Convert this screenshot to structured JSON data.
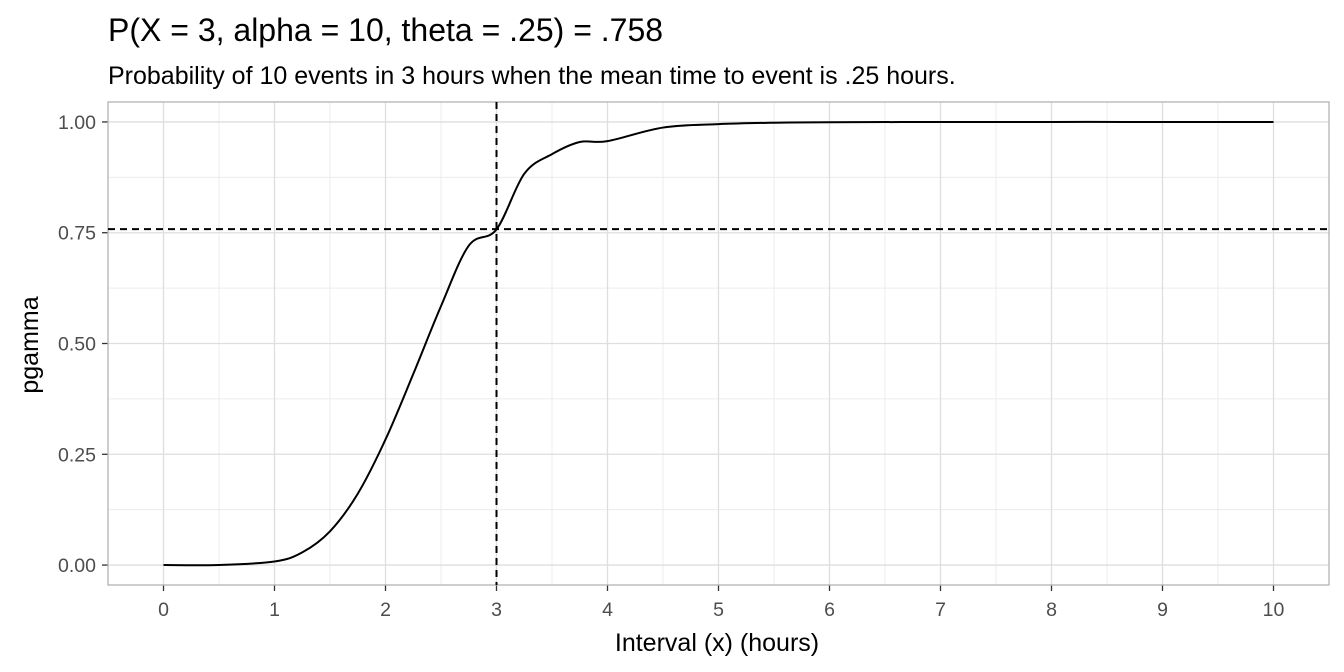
{
  "chart_data": {
    "type": "line",
    "title": "P(X = 3, alpha = 10, theta = .25) = .758",
    "subtitle": "Probability of 10 events in 3 hours when the mean time to event is .25 hours.",
    "xlabel": "Interval (x) (hours)",
    "ylabel": "pgamma",
    "xlim": [
      -0.5,
      10.5
    ],
    "ylim": [
      -0.045,
      1.045
    ],
    "x_ticks": [
      0,
      1,
      2,
      3,
      4,
      5,
      6,
      7,
      8,
      9,
      10
    ],
    "x_tick_labels": [
      "0",
      "1",
      "2",
      "3",
      "4",
      "5",
      "6",
      "7",
      "8",
      "9",
      "10"
    ],
    "y_ticks": [
      0,
      0.25,
      0.5,
      0.75,
      1
    ],
    "y_tick_labels": [
      "0.00",
      "0.25",
      "0.50",
      "0.75",
      "1.00"
    ],
    "grid": true,
    "series": [
      {
        "x": [
          0,
          0.5,
          1,
          1.25,
          1.5,
          1.75,
          2,
          2.25,
          2.5,
          2.75,
          3,
          3.25,
          3.5,
          3.75,
          4,
          4.5,
          5,
          5.5,
          6,
          7,
          8,
          9,
          10
        ],
        "y": [
          0,
          0.0002,
          0.0081,
          0.0286,
          0.0762,
          0.161,
          0.2834,
          0.4311,
          0.5843,
          0.7207,
          0.7576,
          0.8829,
          0.9273,
          0.9547,
          0.9567,
          0.9873,
          0.995,
          0.9982,
          0.9994,
          0.9999,
          1.0,
          1.0,
          1.0
        ],
        "color": "#000000"
      }
    ],
    "reference_lines": {
      "vertical_x": 3,
      "horizontal_y": 0.758,
      "style": "dashed"
    }
  }
}
